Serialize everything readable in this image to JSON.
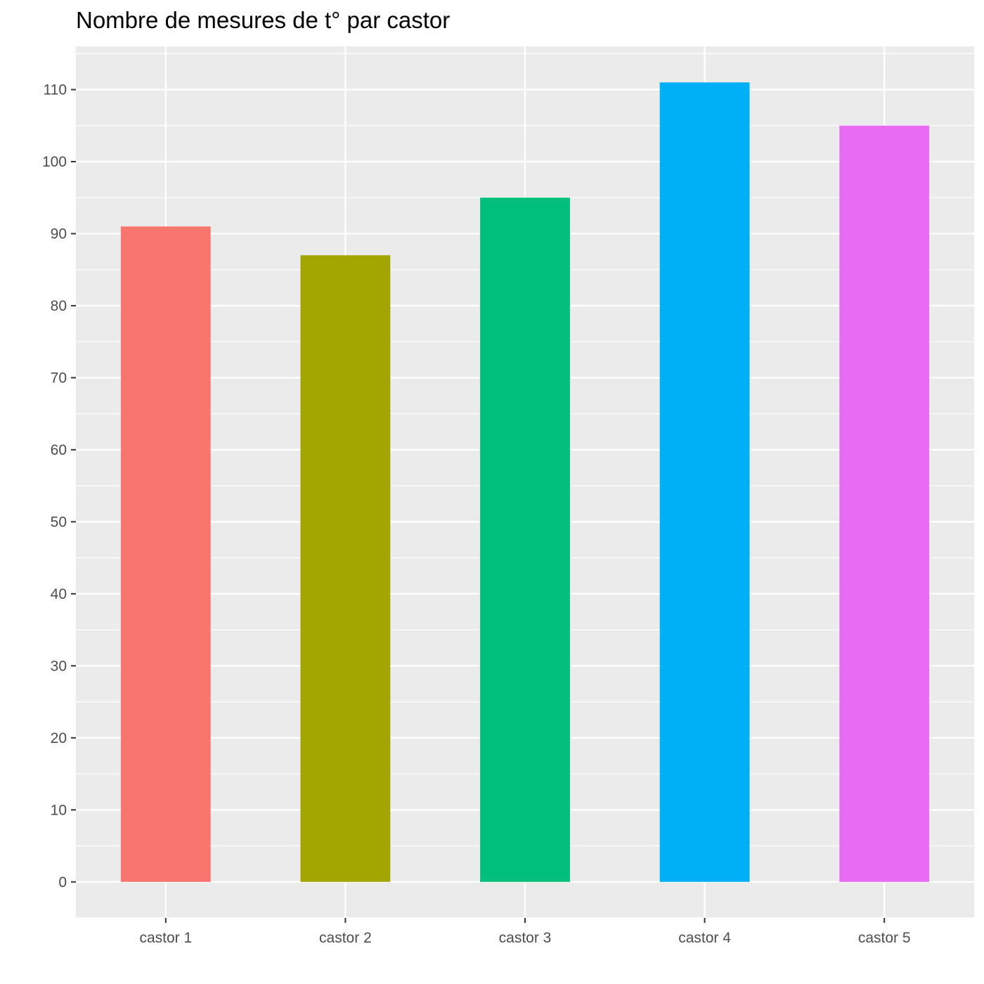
{
  "chart_data": {
    "type": "bar",
    "title": "Nombre de mesures de t° par castor",
    "xlabel": "",
    "ylabel": "",
    "categories": [
      "castor 1",
      "castor 2",
      "castor 3",
      "castor 4",
      "castor 5"
    ],
    "values": [
      91,
      87,
      95,
      111,
      105
    ],
    "colors": [
      "#F8766D",
      "#A3A500",
      "#00BF7D",
      "#00B0F6",
      "#E76BF3"
    ],
    "ylim": [
      -5,
      116
    ],
    "yticks": [
      0,
      10,
      20,
      30,
      40,
      50,
      60,
      70,
      80,
      90,
      100,
      110
    ],
    "grid": true,
    "legend": "none",
    "panel_background": "#EBEBEB",
    "grid_color": "#FFFFFF"
  }
}
